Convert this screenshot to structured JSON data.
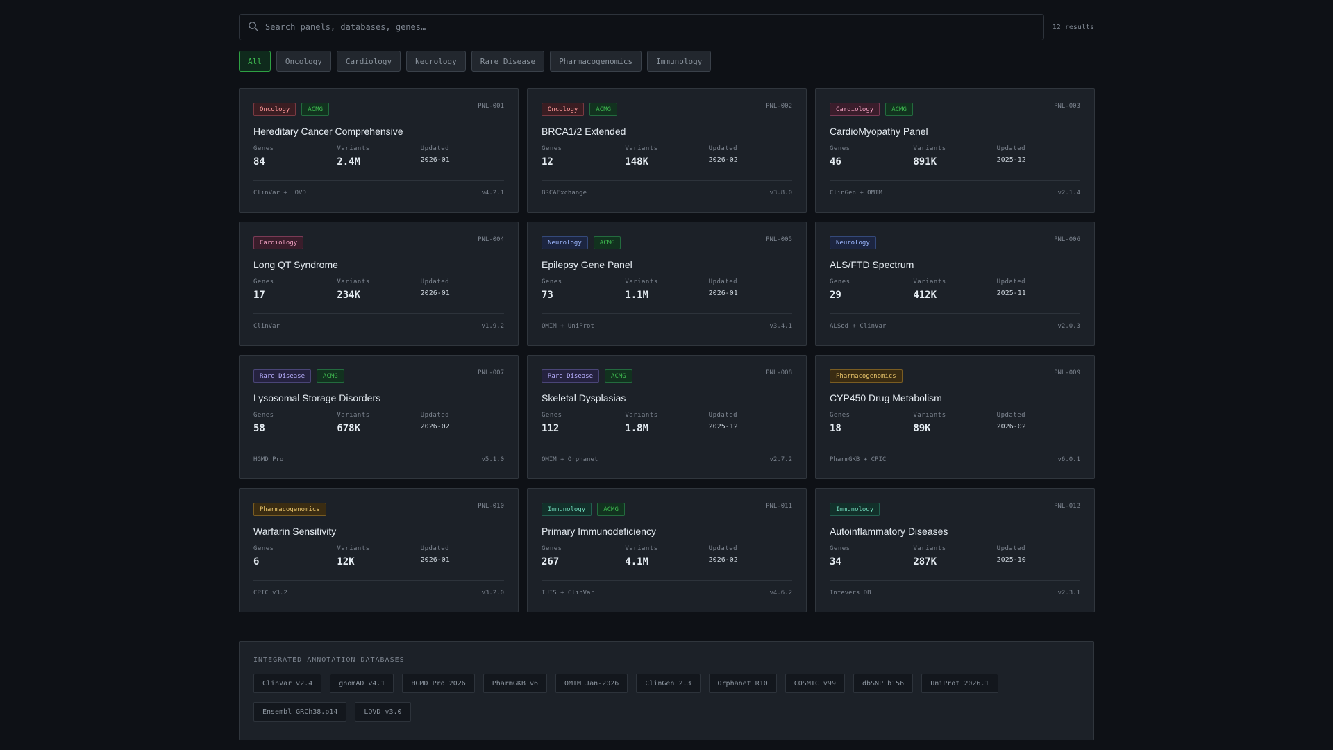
{
  "search": {
    "placeholder": "Search panels, databases, genes…",
    "results": "12 results"
  },
  "filters": [
    "All",
    "Oncology",
    "Cardiology",
    "Neurology",
    "Rare Disease",
    "Pharmacogenomics",
    "Immunology"
  ],
  "labels": {
    "genes": "Genes",
    "variants": "Variants",
    "updated": "Updated"
  },
  "panels": [
    {
      "tags": [
        "Oncology",
        "ACMG"
      ],
      "id": "PNL-001",
      "title": "Hereditary Cancer Comprehensive",
      "genes": "84",
      "variants": "2.4M",
      "updated": "2026-01",
      "source": "ClinVar + LOVD",
      "version": "v4.2.1"
    },
    {
      "tags": [
        "Oncology",
        "ACMG"
      ],
      "id": "PNL-002",
      "title": "BRCA1/2 Extended",
      "genes": "12",
      "variants": "148K",
      "updated": "2026-02",
      "source": "BRCAExchange",
      "version": "v3.8.0"
    },
    {
      "tags": [
        "Cardiology",
        "ACMG"
      ],
      "id": "PNL-003",
      "title": "CardioMyopathy Panel",
      "genes": "46",
      "variants": "891K",
      "updated": "2025-12",
      "source": "ClinGen + OMIM",
      "version": "v2.1.4"
    },
    {
      "tags": [
        "Cardiology"
      ],
      "id": "PNL-004",
      "title": "Long QT Syndrome",
      "genes": "17",
      "variants": "234K",
      "updated": "2026-01",
      "source": "ClinVar",
      "version": "v1.9.2"
    },
    {
      "tags": [
        "Neurology",
        "ACMG"
      ],
      "id": "PNL-005",
      "title": "Epilepsy Gene Panel",
      "genes": "73",
      "variants": "1.1M",
      "updated": "2026-01",
      "source": "OMIM + UniProt",
      "version": "v3.4.1"
    },
    {
      "tags": [
        "Neurology"
      ],
      "id": "PNL-006",
      "title": "ALS/FTD Spectrum",
      "genes": "29",
      "variants": "412K",
      "updated": "2025-11",
      "source": "ALSod + ClinVar",
      "version": "v2.0.3"
    },
    {
      "tags": [
        "Rare Disease",
        "ACMG"
      ],
      "id": "PNL-007",
      "title": "Lysosomal Storage Disorders",
      "genes": "58",
      "variants": "678K",
      "updated": "2026-02",
      "source": "HGMD Pro",
      "version": "v5.1.0"
    },
    {
      "tags": [
        "Rare Disease",
        "ACMG"
      ],
      "id": "PNL-008",
      "title": "Skeletal Dysplasias",
      "genes": "112",
      "variants": "1.8M",
      "updated": "2025-12",
      "source": "OMIM + Orphanet",
      "version": "v2.7.2"
    },
    {
      "tags": [
        "Pharmacogenomics"
      ],
      "id": "PNL-009",
      "title": "CYP450 Drug Metabolism",
      "genes": "18",
      "variants": "89K",
      "updated": "2026-02",
      "source": "PharmGKB + CPIC",
      "version": "v6.0.1"
    },
    {
      "tags": [
        "Pharmacogenomics"
      ],
      "id": "PNL-010",
      "title": "Warfarin Sensitivity",
      "genes": "6",
      "variants": "12K",
      "updated": "2026-01",
      "source": "CPIC v3.2",
      "version": "v3.2.0"
    },
    {
      "tags": [
        "Immunology",
        "ACMG"
      ],
      "id": "PNL-011",
      "title": "Primary Immunodeficiency",
      "genes": "267",
      "variants": "4.1M",
      "updated": "2026-02",
      "source": "IUIS + ClinVar",
      "version": "v4.6.2"
    },
    {
      "tags": [
        "Immunology"
      ],
      "id": "PNL-012",
      "title": "Autoinflammatory Diseases",
      "genes": "34",
      "variants": "287K",
      "updated": "2025-10",
      "source": "Infevers DB",
      "version": "v2.3.1"
    }
  ],
  "databases": {
    "title": "INTEGRATED ANNOTATION DATABASES",
    "items": [
      "ClinVar v2.4",
      "gnomAD v4.1",
      "HGMD Pro 2026",
      "PharmGKB v6",
      "OMIM Jan-2026",
      "ClinGen 2.3",
      "Orphanet R10",
      "COSMIC v99",
      "dbSNP b156",
      "UniProt 2026.1",
      "Ensembl GRCh38.p14",
      "LOVD v3.0"
    ]
  }
}
